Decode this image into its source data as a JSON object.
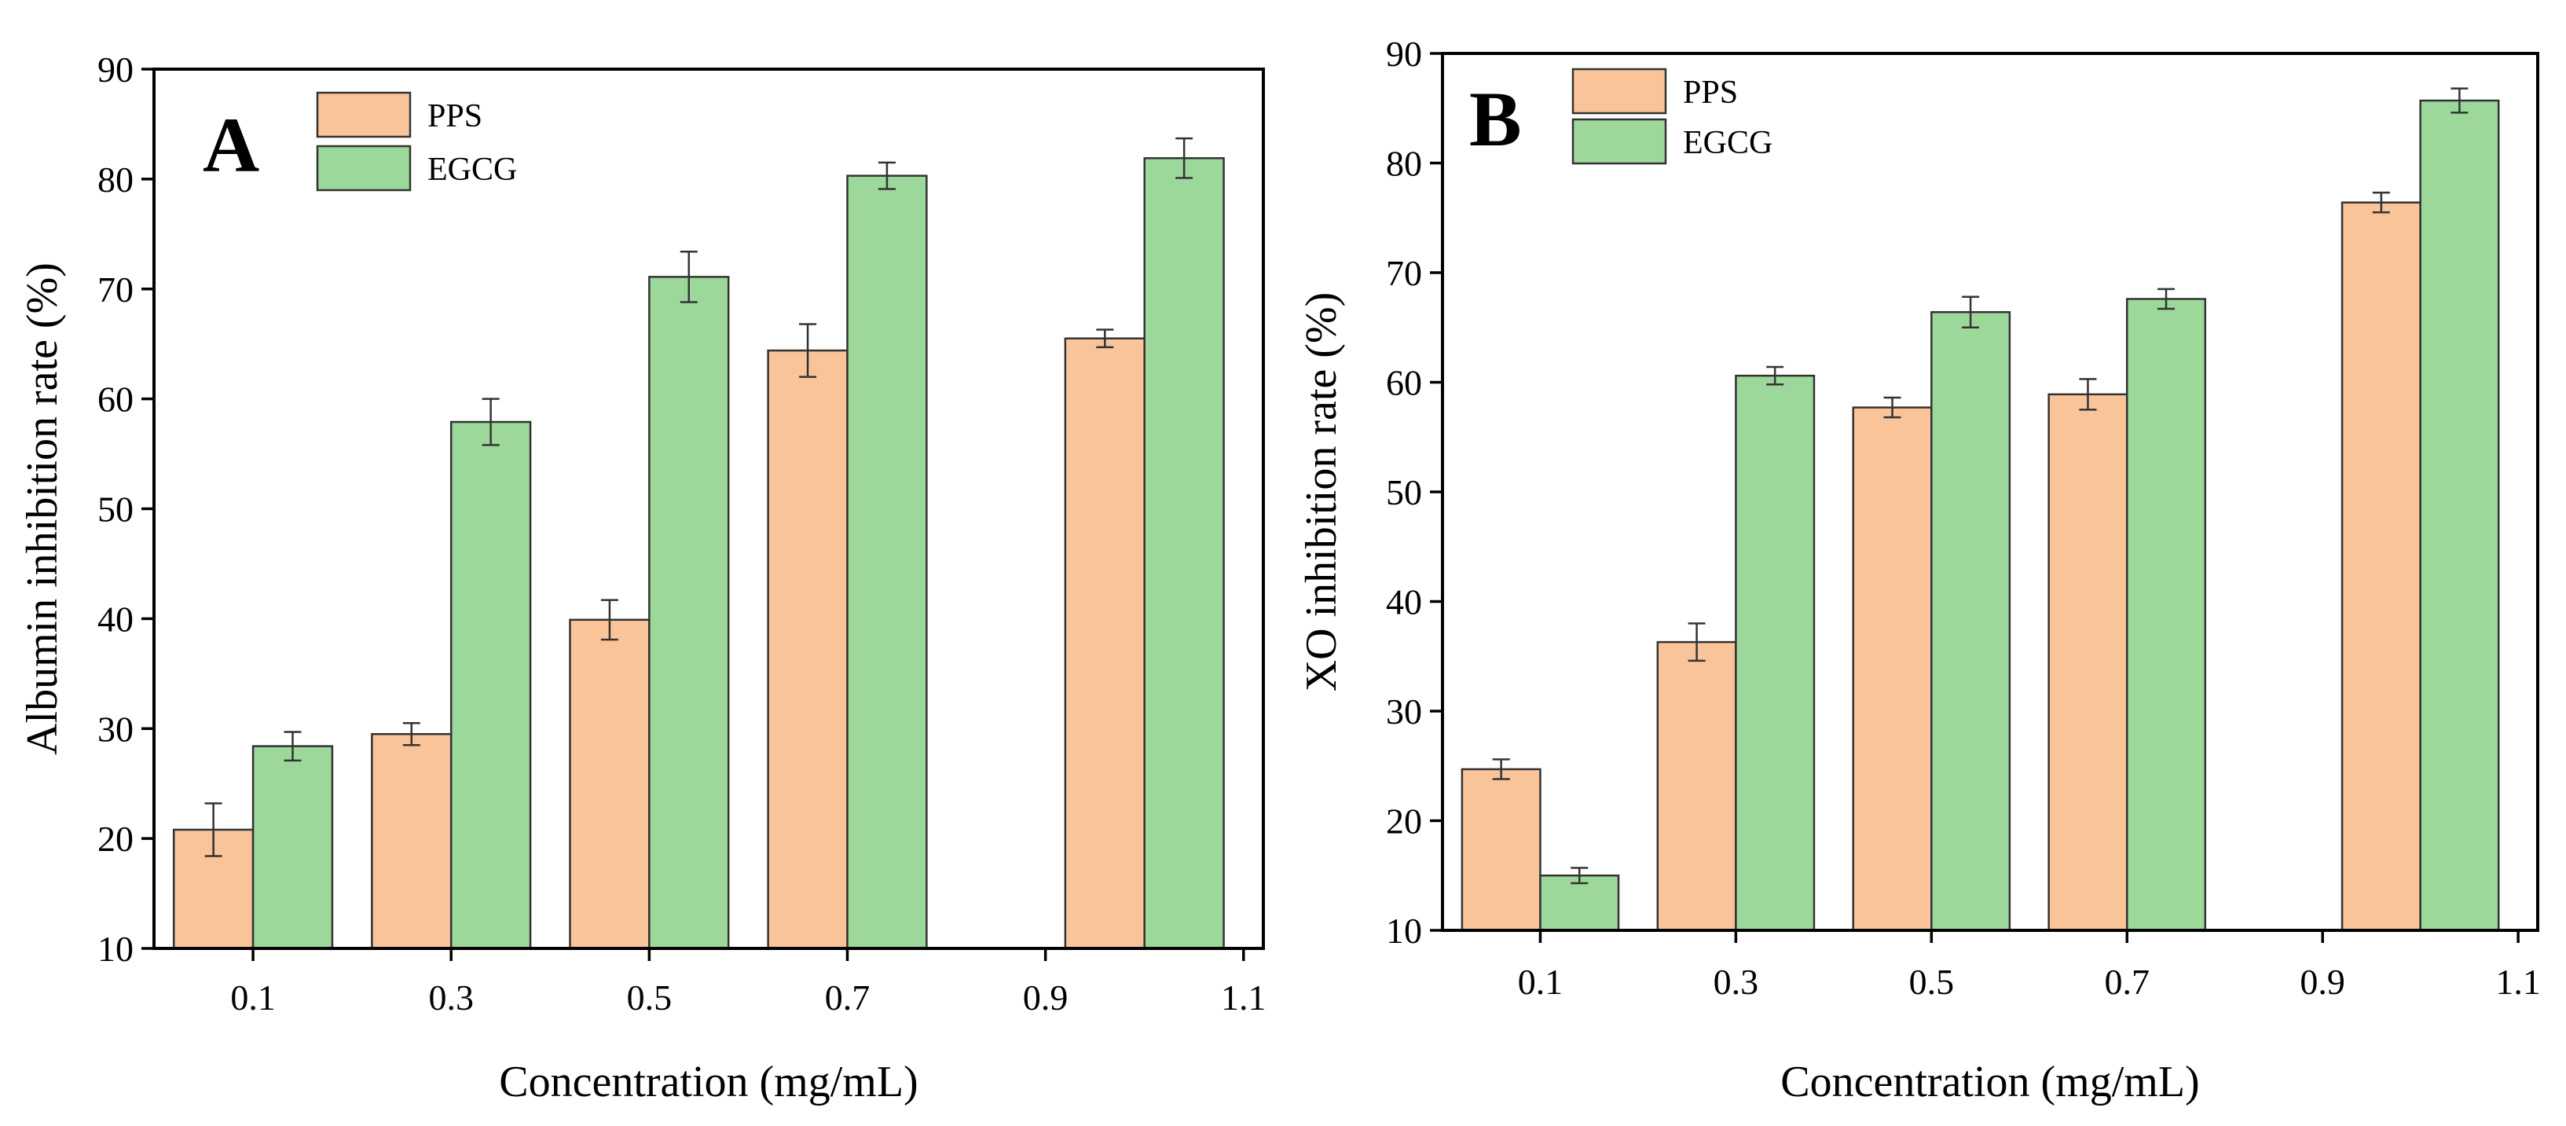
{
  "chart_data": [
    {
      "panel": "A",
      "type": "bar",
      "title": "",
      "xlabel": "Concentration (mg/mL)",
      "ylabel": "Albumin inhibition rate (%)",
      "ylim": [
        10,
        90
      ],
      "xlim": [
        0.0,
        1.12
      ],
      "xticks": [
        "0.1",
        "0.3",
        "0.5",
        "0.7",
        "0.9",
        "1.1"
      ],
      "yticks": [
        "10",
        "20",
        "30",
        "40",
        "50",
        "60",
        "70",
        "80",
        "90"
      ],
      "categories": [
        "0.1",
        "0.3",
        "0.5",
        "0.7",
        "0.9",
        "1.1"
      ],
      "legend_position": "top-left",
      "series": [
        {
          "name": "PPS",
          "color": "#f9c49a",
          "x": [
            0.1,
            0.3,
            0.5,
            0.7,
            1.0
          ],
          "values": [
            20.8,
            29.5,
            39.9,
            64.4,
            65.5
          ],
          "errors": [
            2.4,
            1.0,
            1.8,
            2.4,
            0.8
          ]
        },
        {
          "name": "EGCG",
          "color": "#9dd89b",
          "x": [
            0.1,
            0.3,
            0.5,
            0.7,
            1.0
          ],
          "values": [
            28.4,
            57.9,
            71.1,
            80.3,
            81.9
          ],
          "errors": [
            1.3,
            2.1,
            2.3,
            1.2,
            1.8
          ]
        }
      ]
    },
    {
      "panel": "B",
      "type": "bar",
      "title": "",
      "xlabel": "Concentration (mg/mL)",
      "ylabel": "XO inhibition rate (%)",
      "ylim": [
        10,
        90
      ],
      "xlim": [
        0.0,
        1.12
      ],
      "xticks": [
        "0.1",
        "0.3",
        "0.5",
        "0.7",
        "0.9",
        "1.1"
      ],
      "yticks": [
        "10",
        "20",
        "30",
        "40",
        "50",
        "60",
        "70",
        "80",
        "90"
      ],
      "categories": [
        "0.1",
        "0.3",
        "0.5",
        "0.7",
        "0.9",
        "1.1"
      ],
      "legend_position": "top-left",
      "series": [
        {
          "name": "PPS",
          "color": "#f9c49a",
          "x": [
            0.1,
            0.3,
            0.5,
            0.7,
            1.0
          ],
          "values": [
            24.7,
            36.3,
            57.7,
            58.9,
            76.4
          ],
          "errors": [
            0.9,
            1.7,
            0.9,
            1.4,
            0.9
          ]
        },
        {
          "name": "EGCG",
          "color": "#9dd89b",
          "x": [
            0.1,
            0.3,
            0.5,
            0.7,
            1.0
          ],
          "values": [
            15.0,
            60.6,
            66.4,
            67.6,
            85.7
          ],
          "errors": [
            0.7,
            0.8,
            1.4,
            0.9,
            1.1
          ]
        }
      ]
    }
  ]
}
